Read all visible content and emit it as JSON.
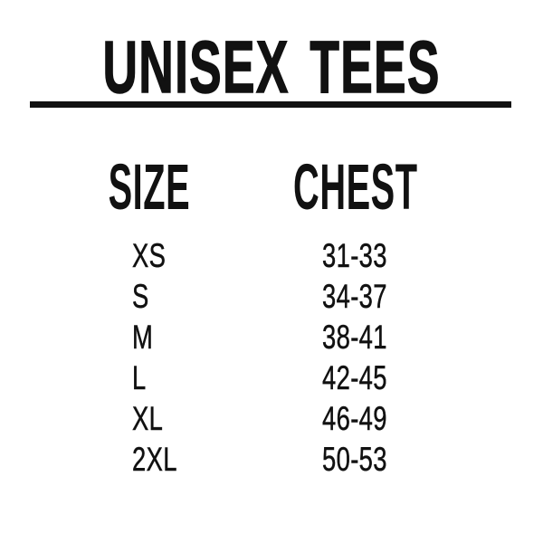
{
  "title": "UNISEX TEES",
  "columns": {
    "size": "SIZE",
    "chest": "CHEST"
  },
  "rows": [
    {
      "size": "XS",
      "chest": "31-33"
    },
    {
      "size": "S",
      "chest": "34-37"
    },
    {
      "size": "M",
      "chest": "38-41"
    },
    {
      "size": "L",
      "chest": "42-45"
    },
    {
      "size": "XL",
      "chest": "46-49"
    },
    {
      "size": "2XL",
      "chest": "50-53"
    }
  ],
  "colors": {
    "text": "#111111",
    "background": "#ffffff",
    "rule": "#111111"
  }
}
